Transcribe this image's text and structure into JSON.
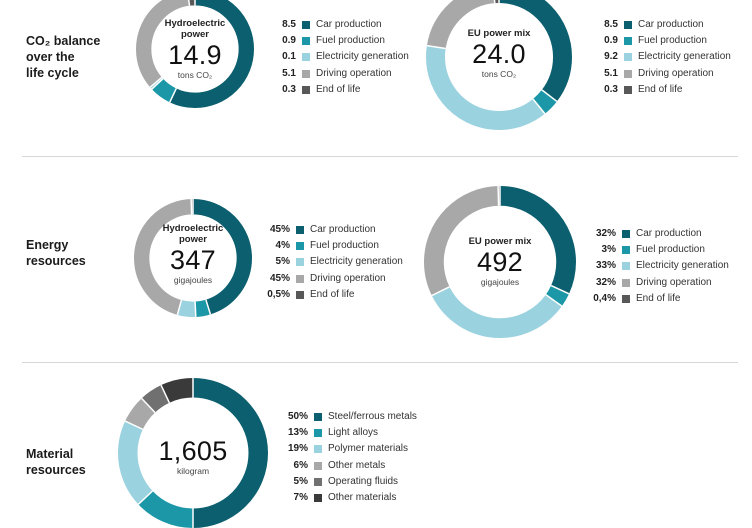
{
  "sections": [
    {
      "label": "CO₂ balance\nover the\nlife cycle"
    },
    {
      "label": "Energy\nresources"
    },
    {
      "label": "Material\nresources"
    }
  ],
  "chart_data": [
    {
      "type": "pie",
      "center": {
        "subtitle": "Hydroelectric\npower",
        "value": "14.9",
        "unit": "tons CO₂"
      },
      "series": [
        {
          "name": "Car production",
          "label": "8.5",
          "value": 8.5,
          "color": "#0b5f6e"
        },
        {
          "name": "Fuel production",
          "label": "0.9",
          "value": 0.9,
          "color": "#1b97a7"
        },
        {
          "name": "Electricity generation",
          "label": "0.1",
          "value": 0.1,
          "color": "#9ad2df"
        },
        {
          "name": "Driving operation",
          "label": "5.1",
          "value": 5.1,
          "color": "#a8a8a8"
        },
        {
          "name": "End of life",
          "label": "0.3",
          "value": 0.3,
          "color": "#585858"
        }
      ]
    },
    {
      "type": "pie",
      "center": {
        "subtitle": "EU power mix",
        "value": "24.0",
        "unit": "tons CO₂"
      },
      "series": [
        {
          "name": "Car production",
          "label": "8.5",
          "value": 8.5,
          "color": "#0b5f6e"
        },
        {
          "name": "Fuel production",
          "label": "0.9",
          "value": 0.9,
          "color": "#1b97a7"
        },
        {
          "name": "Electricity generation",
          "label": "9.2",
          "value": 9.2,
          "color": "#9ad2df"
        },
        {
          "name": "Driving operation",
          "label": "5.1",
          "value": 5.1,
          "color": "#a8a8a8"
        },
        {
          "name": "End of life",
          "label": "0.3",
          "value": 0.3,
          "color": "#585858"
        }
      ]
    },
    {
      "type": "pie",
      "center": {
        "subtitle": "Hydroelectric\npower",
        "value": "347",
        "unit": "gigajoules"
      },
      "series": [
        {
          "name": "Car production",
          "label": "45%",
          "value": 45,
          "color": "#0b5f6e"
        },
        {
          "name": "Fuel production",
          "label": "4%",
          "value": 4,
          "color": "#1b97a7"
        },
        {
          "name": "Electricity generation",
          "label": "5%",
          "value": 5,
          "color": "#9ad2df"
        },
        {
          "name": "Driving operation",
          "label": "45%",
          "value": 45,
          "color": "#a8a8a8"
        },
        {
          "name": "End of life",
          "label": "0,5%",
          "value": 0.5,
          "color": "#585858"
        }
      ]
    },
    {
      "type": "pie",
      "center": {
        "subtitle": "EU power mix",
        "value": "492",
        "unit": "gigajoules"
      },
      "series": [
        {
          "name": "Car production",
          "label": "32%",
          "value": 32,
          "color": "#0b5f6e"
        },
        {
          "name": "Fuel production",
          "label": "3%",
          "value": 3,
          "color": "#1b97a7"
        },
        {
          "name": "Electricity generation",
          "label": "33%",
          "value": 33,
          "color": "#9ad2df"
        },
        {
          "name": "Driving operation",
          "label": "32%",
          "value": 32,
          "color": "#a8a8a8"
        },
        {
          "name": "End of life",
          "label": "0,4%",
          "value": 0.4,
          "color": "#585858"
        }
      ]
    },
    {
      "type": "pie",
      "center": {
        "subtitle": "",
        "value": "1,605",
        "unit": "kilogram"
      },
      "series": [
        {
          "name": "Steel/ferrous metals",
          "label": "50%",
          "value": 50,
          "color": "#0b5f6e"
        },
        {
          "name": "Light alloys",
          "label": "13%",
          "value": 13,
          "color": "#1b97a7"
        },
        {
          "name": "Polymer materials",
          "label": "19%",
          "value": 19,
          "color": "#9ad2df"
        },
        {
          "name": "Other metals",
          "label": "6%",
          "value": 6,
          "color": "#a8a8a8"
        },
        {
          "name": "Operating fluids",
          "label": "5%",
          "value": 5,
          "color": "#707070"
        },
        {
          "name": "Other materials",
          "label": "7%",
          "value": 7,
          "color": "#3a3a3a"
        }
      ]
    }
  ]
}
